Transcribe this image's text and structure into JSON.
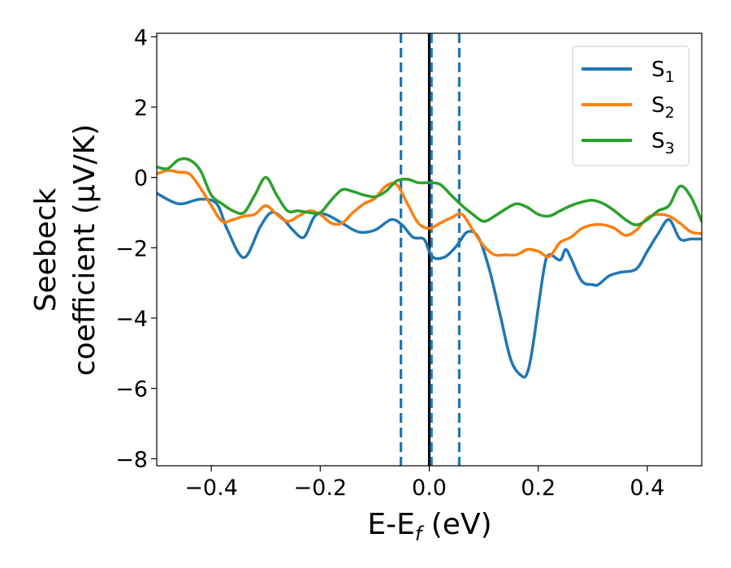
{
  "chart_data": {
    "type": "line",
    "title": "",
    "xlabel": {
      "main": "E-E",
      "sub": "f",
      "unit": " (eV)"
    },
    "ylabel": {
      "line1": "Seebeck",
      "line2": "coefficient  (μV/K)"
    },
    "xlim": [
      -0.5,
      0.5
    ],
    "ylim": [
      -8.2,
      4.1
    ],
    "xticks": [
      -0.4,
      -0.2,
      0.0,
      0.2,
      0.4
    ],
    "xtick_labels": [
      "−0.4",
      "−0.2",
      "0.0",
      "0.2",
      "0.4"
    ],
    "yticks": [
      4,
      2,
      0,
      -2,
      -4,
      -6,
      -8
    ],
    "ytick_labels": [
      "4",
      "2",
      "0",
      "−2",
      "−4",
      "−6",
      "−8"
    ],
    "grid": false,
    "legend_position": "top-right",
    "vertical_lines": [
      {
        "x": -0.052,
        "style": "dashed",
        "color": "#1f77b4"
      },
      {
        "x": 0.0,
        "style": "solid",
        "color": "#000000"
      },
      {
        "x": 0.004,
        "style": "dashed",
        "color": "#1f77b4"
      },
      {
        "x": 0.055,
        "style": "dashed",
        "color": "#1f77b4"
      }
    ],
    "series": [
      {
        "name": "S",
        "sub": "1",
        "color": "#1f77b4",
        "x": [
          -0.5,
          -0.46,
          -0.42,
          -0.39,
          -0.37,
          -0.34,
          -0.31,
          -0.29,
          -0.27,
          -0.25,
          -0.23,
          -0.21,
          -0.19,
          -0.16,
          -0.13,
          -0.1,
          -0.07,
          -0.05,
          -0.03,
          -0.01,
          0.0,
          0.01,
          0.03,
          0.05,
          0.07,
          0.09,
          0.11,
          0.13,
          0.15,
          0.17,
          0.18,
          0.19,
          0.21,
          0.22,
          0.24,
          0.25,
          0.26,
          0.28,
          0.3,
          0.31,
          0.33,
          0.35,
          0.38,
          0.4,
          0.42,
          0.44,
          0.46,
          0.48,
          0.5
        ],
        "y": [
          -0.45,
          -0.75,
          -0.62,
          -0.75,
          -1.5,
          -2.28,
          -1.4,
          -1.0,
          -1.15,
          -1.5,
          -1.7,
          -1.1,
          -1.05,
          -1.3,
          -1.55,
          -1.5,
          -1.2,
          -1.35,
          -1.7,
          -1.75,
          -2.1,
          -2.3,
          -2.25,
          -1.95,
          -1.55,
          -1.7,
          -2.6,
          -3.9,
          -5.2,
          -5.65,
          -5.55,
          -4.8,
          -2.65,
          -2.2,
          -2.35,
          -2.05,
          -2.3,
          -2.95,
          -3.05,
          -3.05,
          -2.8,
          -2.7,
          -2.6,
          -2.1,
          -1.6,
          -1.2,
          -1.75,
          -1.75,
          -1.75
        ]
      },
      {
        "name": "S",
        "sub": "2",
        "color": "#ff7f0e",
        "x": [
          -0.5,
          -0.48,
          -0.46,
          -0.44,
          -0.42,
          -0.4,
          -0.38,
          -0.36,
          -0.34,
          -0.32,
          -0.3,
          -0.28,
          -0.26,
          -0.24,
          -0.22,
          -0.2,
          -0.18,
          -0.16,
          -0.14,
          -0.12,
          -0.1,
          -0.08,
          -0.06,
          -0.04,
          -0.02,
          0.0,
          0.02,
          0.04,
          0.06,
          0.08,
          0.1,
          0.12,
          0.14,
          0.16,
          0.18,
          0.2,
          0.22,
          0.24,
          0.26,
          0.28,
          0.3,
          0.32,
          0.34,
          0.36,
          0.38,
          0.4,
          0.42,
          0.44,
          0.46,
          0.48,
          0.5
        ],
        "y": [
          0.1,
          0.2,
          0.15,
          0.1,
          -0.3,
          -0.8,
          -1.25,
          -1.2,
          -1.1,
          -1.05,
          -0.8,
          -1.05,
          -1.25,
          -1.1,
          -0.95,
          -1.05,
          -1.3,
          -1.3,
          -1.0,
          -0.75,
          -0.6,
          -0.25,
          -0.2,
          -0.75,
          -1.3,
          -1.45,
          -1.3,
          -1.15,
          -1.05,
          -1.5,
          -1.95,
          -2.2,
          -2.2,
          -2.2,
          -2.05,
          -2.1,
          -2.25,
          -1.85,
          -1.7,
          -1.45,
          -1.35,
          -1.35,
          -1.45,
          -1.65,
          -1.5,
          -1.15,
          -1.05,
          -1.1,
          -1.3,
          -1.55,
          -1.6
        ]
      },
      {
        "name": "S",
        "sub": "3",
        "color": "#2ca02c",
        "x": [
          -0.5,
          -0.48,
          -0.46,
          -0.44,
          -0.42,
          -0.4,
          -0.38,
          -0.36,
          -0.34,
          -0.32,
          -0.3,
          -0.28,
          -0.26,
          -0.24,
          -0.22,
          -0.2,
          -0.18,
          -0.16,
          -0.14,
          -0.12,
          -0.1,
          -0.08,
          -0.06,
          -0.04,
          -0.02,
          0.0,
          0.02,
          0.04,
          0.06,
          0.08,
          0.1,
          0.12,
          0.14,
          0.16,
          0.18,
          0.2,
          0.22,
          0.24,
          0.26,
          0.28,
          0.3,
          0.32,
          0.34,
          0.36,
          0.38,
          0.4,
          0.42,
          0.44,
          0.46,
          0.48,
          0.5
        ],
        "y": [
          0.3,
          0.25,
          0.5,
          0.5,
          0.2,
          -0.5,
          -0.75,
          -0.95,
          -1.0,
          -0.5,
          0.0,
          -0.5,
          -0.95,
          -0.95,
          -1.0,
          -1.0,
          -0.65,
          -0.35,
          -0.4,
          -0.5,
          -0.55,
          -0.4,
          -0.1,
          -0.05,
          -0.15,
          -0.15,
          -0.2,
          -0.5,
          -0.8,
          -1.05,
          -1.25,
          -1.1,
          -0.9,
          -0.75,
          -0.85,
          -1.05,
          -1.1,
          -0.95,
          -0.8,
          -0.7,
          -0.65,
          -0.75,
          -0.95,
          -1.2,
          -1.35,
          -1.2,
          -0.95,
          -0.8,
          -0.25,
          -0.55,
          -1.25
        ]
      }
    ]
  }
}
